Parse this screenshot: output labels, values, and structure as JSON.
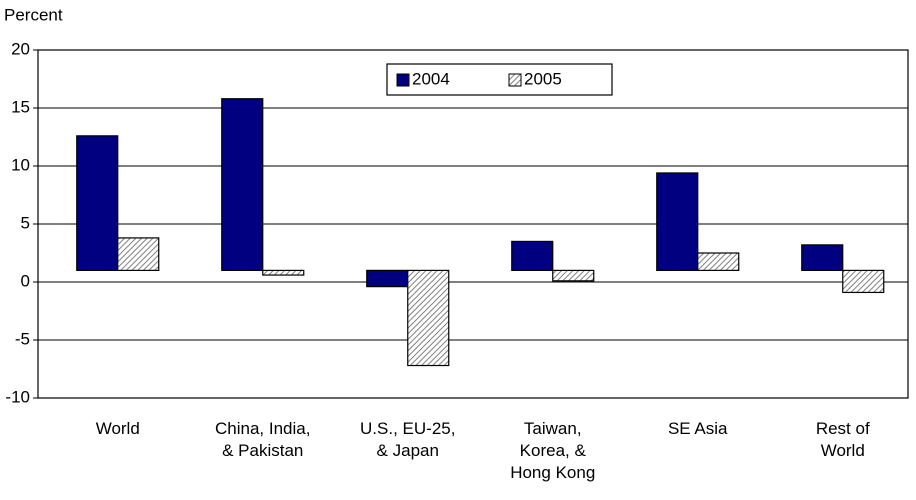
{
  "chart_data": {
    "type": "bar",
    "y_label": "Percent",
    "categories": [
      "World",
      "China, India,\n& Pakistan",
      "U.S., EU-25,\n& Japan",
      "Taiwan,\nKorea, &\nHong Kong",
      "SE Asia",
      "Rest of\nWorld"
    ],
    "series": [
      {
        "name": "2004",
        "color": "#000080",
        "values": [
          12.6,
          15.8,
          -0.4,
          3.5,
          9.4,
          3.2
        ]
      },
      {
        "name": "2005",
        "color": "#808080",
        "hatched": true,
        "values": [
          3.8,
          0.6,
          -7.2,
          0.1,
          2.5,
          -0.9
        ]
      }
    ],
    "ylim": [
      -10,
      20
    ],
    "yticks": [
      -10,
      -5,
      0,
      5,
      10,
      15,
      20
    ],
    "baseline": 1,
    "grid": true,
    "legend": "top"
  }
}
